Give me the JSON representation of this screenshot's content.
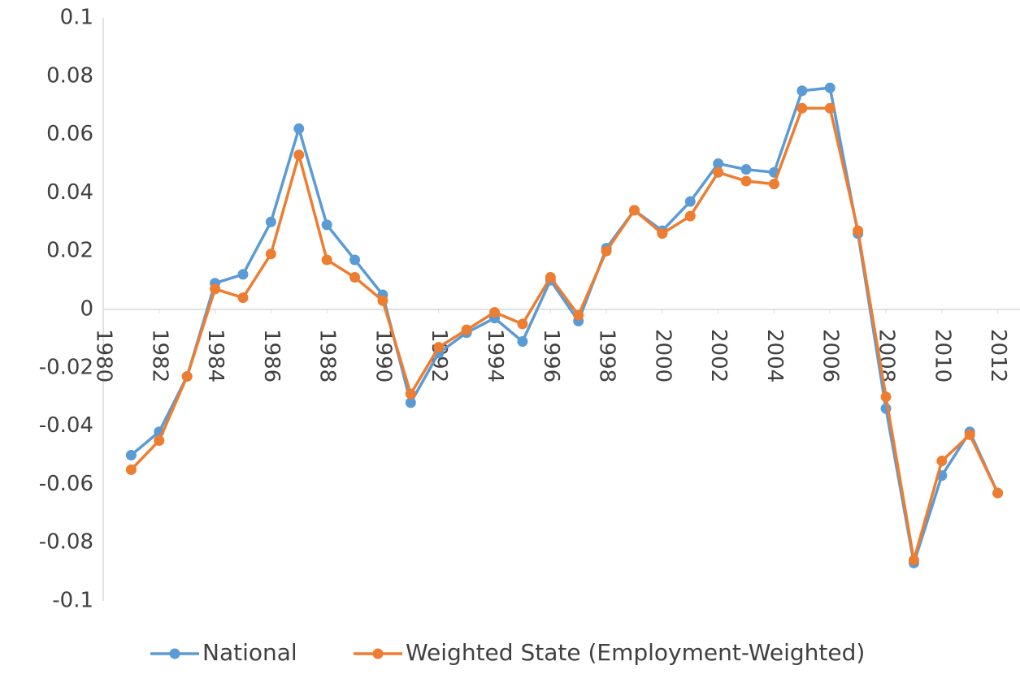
{
  "chart_data": {
    "type": "line",
    "x": [
      1981,
      1982,
      1983,
      1984,
      1985,
      1986,
      1987,
      1988,
      1989,
      1990,
      1991,
      1992,
      1993,
      1994,
      1995,
      1996,
      1997,
      1998,
      1999,
      2000,
      2001,
      2002,
      2003,
      2004,
      2005,
      2006,
      2007,
      2008,
      2009,
      2010,
      2011,
      2012
    ],
    "series": [
      {
        "name": "National",
        "color": "#5b9bd5",
        "values": [
          -0.05,
          -0.042,
          -0.023,
          0.009,
          0.012,
          0.03,
          0.062,
          0.029,
          0.017,
          0.005,
          -0.032,
          -0.015,
          -0.008,
          -0.003,
          -0.011,
          0.01,
          -0.004,
          0.021,
          0.034,
          0.027,
          0.037,
          0.05,
          0.048,
          0.047,
          0.075,
          0.076,
          0.026,
          -0.034,
          -0.087,
          -0.057,
          -0.042,
          -0.063
        ]
      },
      {
        "name": "Weighted State (Employment-Weighted)",
        "color": "#ed7d31",
        "values": [
          -0.055,
          -0.045,
          -0.023,
          0.007,
          0.004,
          0.019,
          0.053,
          0.017,
          0.011,
          0.003,
          -0.029,
          -0.013,
          -0.007,
          -0.001,
          -0.005,
          0.011,
          -0.002,
          0.02,
          0.034,
          0.026,
          0.032,
          0.047,
          0.044,
          0.043,
          0.069,
          0.069,
          0.027,
          -0.03,
          -0.086,
          -0.052,
          -0.043,
          -0.063
        ]
      }
    ],
    "xlim": [
      1980,
      2013
    ],
    "xticks": [
      1980,
      1982,
      1984,
      1986,
      1988,
      1990,
      1992,
      1994,
      1996,
      1998,
      2000,
      2002,
      2004,
      2006,
      2008,
      2010,
      2012
    ],
    "ylim": [
      -0.1,
      0.1
    ],
    "yticks": [
      -0.1,
      -0.08,
      -0.06,
      -0.04,
      -0.02,
      0,
      0.02,
      0.04,
      0.06,
      0.08,
      0.1
    ],
    "grid": false,
    "legend": "bottom"
  }
}
